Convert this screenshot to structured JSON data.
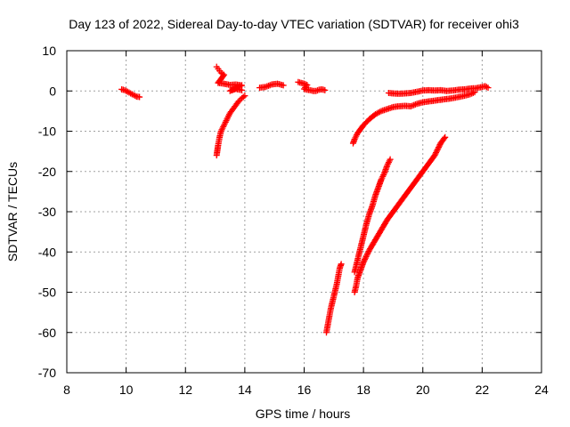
{
  "chart_data": {
    "type": "scatter",
    "title": "Day 123 of 2022, Sidereal Day-to-day VTEC variation (SDTVAR) for receiver ohi3",
    "xlabel": "GPS time / hours",
    "ylabel": "SDTVAR / TECUs",
    "xlim": [
      8,
      24
    ],
    "ylim": [
      -70,
      10
    ],
    "xticks": [
      8,
      10,
      12,
      14,
      16,
      18,
      20,
      22,
      24
    ],
    "yticks": [
      -70,
      -60,
      -50,
      -40,
      -30,
      -20,
      -10,
      0,
      10
    ],
    "grid": true,
    "legend": "none",
    "marker": "plus",
    "color": "#ff0000",
    "series": [
      {
        "points": [
          [
            9.85,
            0.4
          ],
          [
            9.95,
            0.2
          ],
          [
            10.05,
            -0.2
          ],
          [
            10.15,
            -0.6
          ],
          [
            10.25,
            -1.0
          ],
          [
            10.35,
            -1.4
          ],
          [
            10.45,
            -1.5
          ]
        ]
      },
      {
        "points": [
          [
            13.05,
            -16.0
          ],
          [
            13.1,
            -13.5
          ],
          [
            13.15,
            -11.5
          ],
          [
            13.2,
            -10.0
          ],
          [
            13.3,
            -8.5
          ],
          [
            13.4,
            -7.0
          ],
          [
            13.5,
            -5.5
          ],
          [
            13.6,
            -4.5
          ],
          [
            13.7,
            -3.5
          ],
          [
            13.8,
            -2.5
          ],
          [
            13.9,
            -1.8
          ],
          [
            14.0,
            -1.2
          ]
        ]
      },
      {
        "points": [
          [
            13.05,
            6.0
          ],
          [
            13.1,
            5.5
          ],
          [
            13.15,
            5.0
          ],
          [
            13.2,
            4.5
          ],
          [
            13.3,
            4.0
          ],
          [
            13.1,
            2.0
          ],
          [
            13.3,
            1.8
          ],
          [
            13.5,
            1.5
          ],
          [
            13.7,
            1.6
          ],
          [
            13.9,
            1.4
          ],
          [
            13.5,
            0.0
          ],
          [
            13.7,
            0.5
          ],
          [
            13.9,
            0.2
          ]
        ]
      },
      {
        "points": [
          [
            14.5,
            0.8
          ],
          [
            14.6,
            0.9
          ],
          [
            14.7,
            1.0
          ],
          [
            14.8,
            1.3
          ],
          [
            14.9,
            1.6
          ],
          [
            15.0,
            1.7
          ],
          [
            15.1,
            1.8
          ],
          [
            15.2,
            1.6
          ],
          [
            15.3,
            1.4
          ]
        ]
      },
      {
        "points": [
          [
            15.8,
            2.2
          ],
          [
            15.9,
            2.0
          ],
          [
            16.0,
            1.8
          ],
          [
            16.1,
            1.5
          ],
          [
            16.0,
            0.5
          ],
          [
            16.1,
            0.3
          ],
          [
            16.2,
            0.2
          ],
          [
            16.3,
            0.0
          ],
          [
            16.4,
            0.0
          ],
          [
            16.5,
            0.3
          ],
          [
            16.6,
            0.4
          ],
          [
            16.7,
            0.2
          ]
        ]
      },
      {
        "points": [
          [
            16.75,
            -60.0
          ],
          [
            16.8,
            -58.0
          ],
          [
            16.85,
            -56.0
          ],
          [
            16.9,
            -54.0
          ],
          [
            16.95,
            -52.5
          ],
          [
            17.0,
            -51.0
          ],
          [
            17.05,
            -49.5
          ],
          [
            17.1,
            -48.0
          ],
          [
            17.15,
            -46.0
          ],
          [
            17.2,
            -44.0
          ],
          [
            17.25,
            -43.0
          ]
        ]
      },
      {
        "points": [
          [
            17.7,
            -50.0
          ],
          [
            17.75,
            -48.5
          ],
          [
            17.8,
            -46.5
          ],
          [
            17.9,
            -44.5
          ],
          [
            18.0,
            -42.5
          ],
          [
            18.2,
            -39.5
          ],
          [
            18.4,
            -37.0
          ],
          [
            18.6,
            -34.5
          ],
          [
            18.8,
            -32.0
          ],
          [
            19.0,
            -30.0
          ],
          [
            19.2,
            -28.0
          ],
          [
            19.4,
            -26.0
          ],
          [
            19.6,
            -24.0
          ],
          [
            19.8,
            -22.0
          ],
          [
            20.0,
            -20.0
          ],
          [
            20.2,
            -18.0
          ],
          [
            20.4,
            -16.0
          ],
          [
            20.6,
            -13.0
          ],
          [
            20.75,
            -11.5
          ]
        ]
      },
      {
        "points": [
          [
            17.7,
            -45.0
          ],
          [
            17.8,
            -42.0
          ],
          [
            17.9,
            -39.0
          ],
          [
            18.0,
            -36.0
          ],
          [
            18.1,
            -33.0
          ],
          [
            18.2,
            -30.5
          ],
          [
            18.3,
            -28.5
          ],
          [
            18.4,
            -26.0
          ],
          [
            18.5,
            -24.0
          ],
          [
            18.6,
            -22.0
          ],
          [
            18.7,
            -20.5
          ],
          [
            18.8,
            -18.5
          ],
          [
            18.9,
            -17.0
          ]
        ]
      },
      {
        "points": [
          [
            17.65,
            -13.0
          ],
          [
            17.7,
            -12.0
          ],
          [
            17.8,
            -10.5
          ],
          [
            18.0,
            -8.5
          ],
          [
            18.2,
            -7.0
          ],
          [
            18.4,
            -5.8
          ],
          [
            18.6,
            -5.0
          ],
          [
            18.8,
            -4.5
          ],
          [
            19.0,
            -4.0
          ],
          [
            19.2,
            -3.8
          ],
          [
            19.4,
            -3.7
          ],
          [
            19.6,
            -3.8
          ],
          [
            19.8,
            -3.2
          ],
          [
            20.0,
            -2.8
          ],
          [
            20.2,
            -2.6
          ],
          [
            20.4,
            -2.4
          ],
          [
            20.6,
            -2.2
          ],
          [
            20.8,
            -2.0
          ],
          [
            21.0,
            -1.8
          ],
          [
            21.2,
            -1.5
          ],
          [
            21.4,
            -1.2
          ],
          [
            21.6,
            -0.8
          ],
          [
            21.75,
            -0.3
          ]
        ]
      },
      {
        "points": [
          [
            18.85,
            -0.5
          ],
          [
            19.0,
            -0.6
          ],
          [
            19.2,
            -0.7
          ],
          [
            19.4,
            -0.6
          ],
          [
            19.6,
            -0.5
          ],
          [
            19.8,
            -0.2
          ],
          [
            20.0,
            0.1
          ],
          [
            20.2,
            0.2
          ],
          [
            20.4,
            0.1
          ],
          [
            20.6,
            0.2
          ],
          [
            20.8,
            0.0
          ],
          [
            21.0,
            0.1
          ],
          [
            21.2,
            0.3
          ],
          [
            21.4,
            0.4
          ],
          [
            21.6,
            0.6
          ],
          [
            21.8,
            0.7
          ],
          [
            22.0,
            1.0
          ],
          [
            22.1,
            1.2
          ],
          [
            22.2,
            0.8
          ]
        ]
      }
    ]
  }
}
